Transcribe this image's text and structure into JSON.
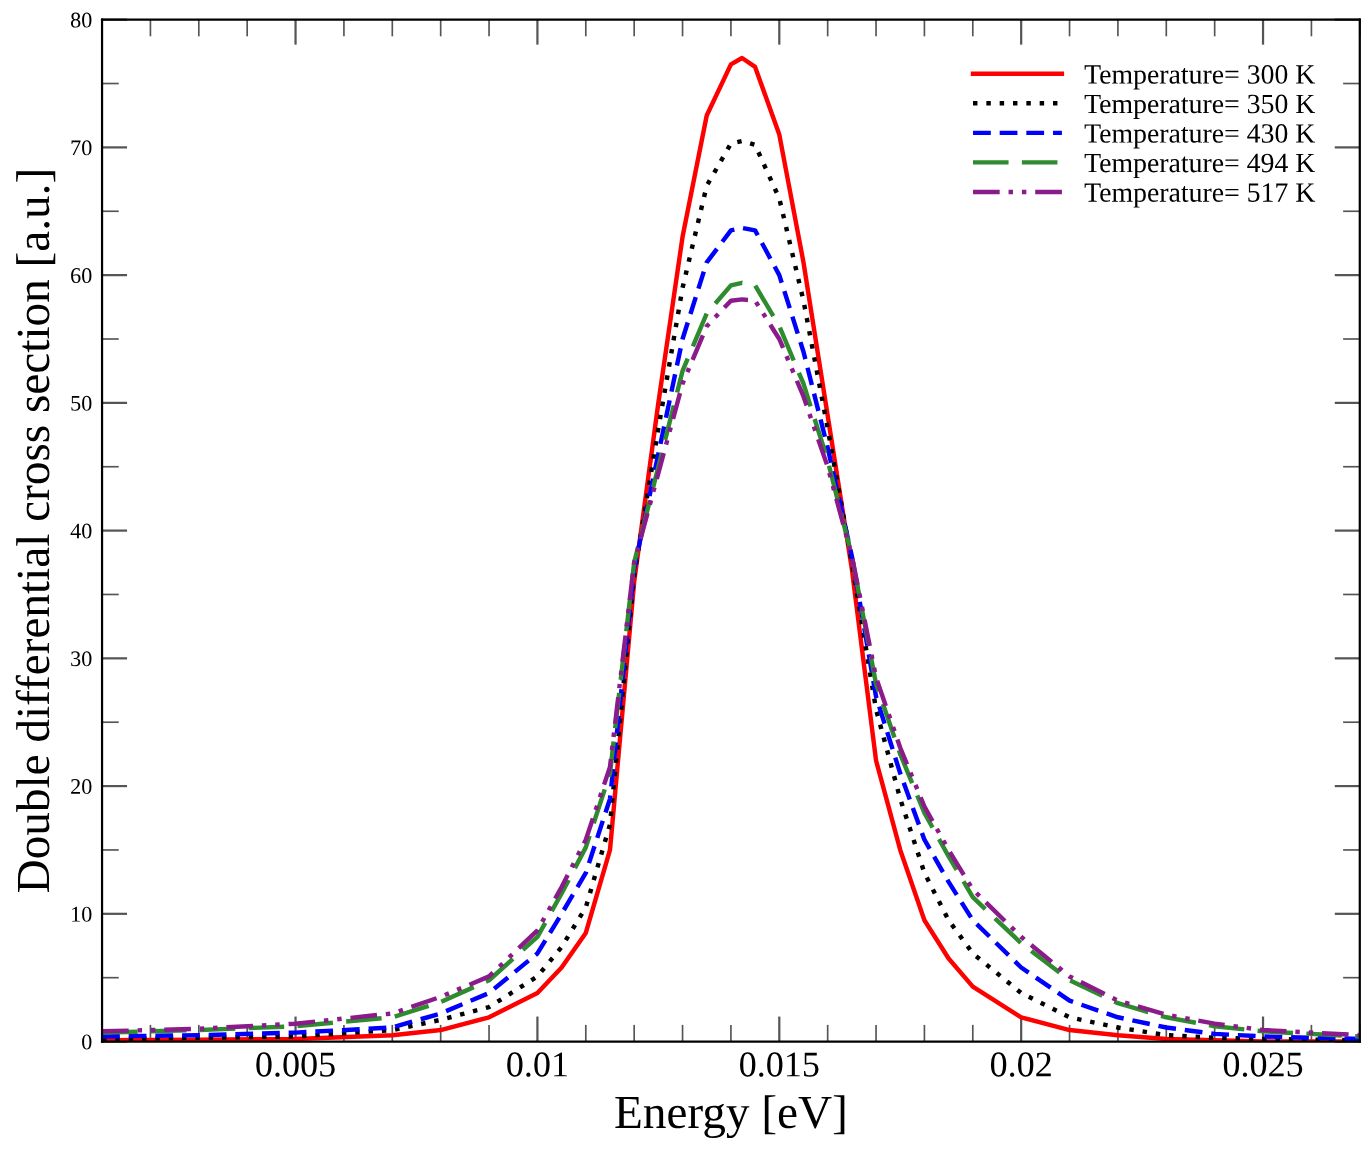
{
  "chart_data": {
    "type": "line",
    "xlabel": "Energy [eV]",
    "ylabel": "Double differential cross section [a.u.]",
    "x": [
      0.001,
      0.003,
      0.005,
      0.007,
      0.008,
      0.009,
      0.01,
      0.0105,
      0.011,
      0.0115,
      0.012,
      0.0125,
      0.013,
      0.0135,
      0.014,
      0.01423,
      0.0145,
      0.015,
      0.0155,
      0.016,
      0.0165,
      0.017,
      0.0175,
      0.018,
      0.0185,
      0.019,
      0.02,
      0.021,
      0.022,
      0.023,
      0.024,
      0.025,
      0.027
    ],
    "series": [
      {
        "name": "Temperature= 300 K",
        "color": "#ff0000",
        "line_style": "solid",
        "values": [
          0.1,
          0.15,
          0.2,
          0.5,
          0.9,
          1.9,
          3.8,
          5.8,
          8.5,
          15,
          36,
          50,
          63,
          72.5,
          76.5,
          77,
          76.3,
          71,
          61,
          49,
          37,
          22,
          15,
          9.5,
          6.5,
          4.3,
          1.9,
          0.9,
          0.5,
          0.2,
          0.1,
          0,
          0
        ]
      },
      {
        "name": "Temperature= 350 K",
        "color": "#000000",
        "line_style": "dotted",
        "values": [
          0.2,
          0.3,
          0.4,
          0.9,
          1.7,
          2.7,
          5.1,
          7.4,
          10.5,
          17,
          36.5,
          48,
          59,
          67,
          70.3,
          70.5,
          70.2,
          66,
          58,
          48,
          37.5,
          26,
          19,
          13.2,
          9.5,
          6.9,
          3.8,
          1.9,
          1.1,
          0.5,
          0.3,
          0.2,
          0.1
        ]
      },
      {
        "name": "Temperature= 430 K",
        "color": "#0000ff",
        "line_style": "dashed",
        "values": [
          0.4,
          0.5,
          0.7,
          1.1,
          2.2,
          3.8,
          6.9,
          10,
          13.2,
          19,
          37,
          46,
          55,
          61,
          63.5,
          63.7,
          63.5,
          60,
          54,
          46.5,
          38,
          27,
          21,
          15.8,
          12.5,
          9.5,
          5.8,
          3.2,
          1.9,
          1.1,
          0.6,
          0.4,
          0.2
        ]
      },
      {
        "name": "Temperature= 494 K",
        "color": "#2e8b2e",
        "line_style": "longdash",
        "values": [
          0.7,
          0.9,
          1.2,
          1.9,
          3.1,
          4.8,
          8.2,
          11.6,
          15.2,
          21,
          37.5,
          45,
          52.5,
          57,
          59.2,
          59.4,
          59.2,
          56,
          51.5,
          45.5,
          38,
          28,
          22.5,
          17.9,
          14.5,
          11.3,
          7.7,
          4.8,
          3,
          1.9,
          1.2,
          0.8,
          0.4
        ]
      },
      {
        "name": "Temperature= 517 K",
        "color": "#8b1a8b",
        "line_style": "dashdotdot",
        "values": [
          0.8,
          1.0,
          1.4,
          2.2,
          3.5,
          5.1,
          8.7,
          12.1,
          15.8,
          21.5,
          37.5,
          44.5,
          51.5,
          56,
          58,
          58.1,
          58,
          55,
          50.5,
          45,
          38,
          28.5,
          23,
          18.4,
          15,
          11.9,
          8.2,
          5.1,
          3.2,
          2.1,
          1.4,
          0.9,
          0.5
        ]
      }
    ],
    "xlim": [
      0.001,
      0.027
    ],
    "xticks": [
      0.005,
      0.01,
      0.015,
      0.02,
      0.025
    ],
    "ylim": [
      0,
      80
    ],
    "yticks": [
      0,
      10,
      20,
      30,
      40,
      50,
      60,
      70,
      80
    ],
    "grid": false,
    "legend": "top right"
  }
}
